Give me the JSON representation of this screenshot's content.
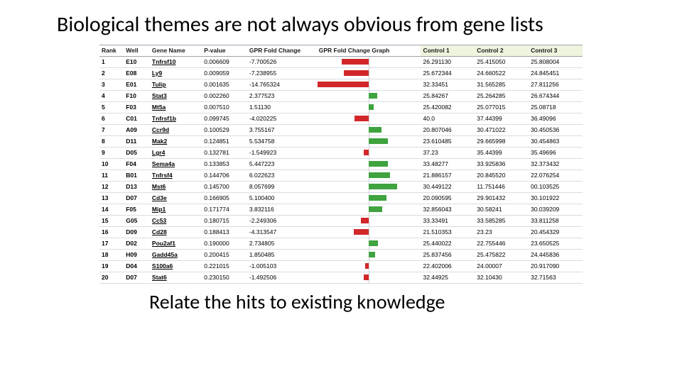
{
  "title": "Biological themes are not always obvious from gene lists",
  "subtitle": "Relate the hits to existing knowledge",
  "table": {
    "fc_scale": 15,
    "colors": {
      "neg_bar": "#d1272a",
      "pos_bar": "#3fa33f",
      "ctrl_header_bg": "#eef4dd"
    },
    "columns": [
      {
        "key": "rank",
        "label": "Rank"
      },
      {
        "key": "well",
        "label": "Well"
      },
      {
        "key": "gene",
        "label": "Gene Name"
      },
      {
        "key": "pval",
        "label": "P-value"
      },
      {
        "key": "fc",
        "label": "GPR Fold Change"
      },
      {
        "key": "graph",
        "label": "GPR Fold Change Graph"
      },
      {
        "key": "c1",
        "label": "Control 1",
        "ctrl": true
      },
      {
        "key": "c2",
        "label": "Control 2",
        "ctrl": true
      },
      {
        "key": "c3",
        "label": "Control 3",
        "ctrl": true
      }
    ],
    "rows": [
      {
        "rank": "1",
        "well": "E10",
        "gene": "Tnfrsf10",
        "pval": "0.006609",
        "fc": "-7.700526",
        "c1": "26.291130",
        "c2": "25.415050",
        "c3": "25.808004"
      },
      {
        "rank": "2",
        "well": "E08",
        "gene": "Ly9",
        "pval": "0.009059",
        "fc": "-7.238955",
        "c1": "25.672344",
        "c2": "24.660522",
        "c3": "24.845451"
      },
      {
        "rank": "3",
        "well": "E01",
        "gene": "Tulip",
        "pval": "0.001635",
        "fc": "-14.765324",
        "c1": "32.33451",
        "c2": "31.565285",
        "c3": "27.811256"
      },
      {
        "rank": "4",
        "well": "F10",
        "gene": "Stat3",
        "pval": "0.002260",
        "fc": "2.377523",
        "c1": "25.84267",
        "c2": "25.264285",
        "c3": "26.674344"
      },
      {
        "rank": "5",
        "well": "F03",
        "gene": "Mt5a",
        "pval": "0.007510",
        "fc": "1.51130",
        "c1": "25.420082",
        "c2": "25.077015",
        "c3": "25.08718"
      },
      {
        "rank": "6",
        "well": "C01",
        "gene": "Tnfrsf1b",
        "pval": "0.099745",
        "fc": "-4.020225",
        "c1": "40.0",
        "c2": "37.44399",
        "c3": "36.49096"
      },
      {
        "rank": "7",
        "well": "A09",
        "gene": "Ccr9d",
        "pval": "0.100529",
        "fc": "3.755167",
        "c1": "20.807046",
        "c2": "30.471022",
        "c3": "30.450536"
      },
      {
        "rank": "8",
        "well": "D11",
        "gene": "Mak2",
        "pval": "0.124851",
        "fc": "5.534758",
        "c1": "23.610485",
        "c2": "29.665998",
        "c3": "30.454863"
      },
      {
        "rank": "9",
        "well": "D05",
        "gene": "Lgr4",
        "pval": "0.132781",
        "fc": "-1.549923",
        "c1": "37.23",
        "c2": "35.44399",
        "c3": "35.49696"
      },
      {
        "rank": "10",
        "well": "F04",
        "gene": "Sema4a",
        "pval": "0.133853",
        "fc": "5.447223",
        "c1": "33.48277",
        "c2": "33.925836",
        "c3": "32.373432"
      },
      {
        "rank": "11",
        "well": "B01",
        "gene": "Tnfrsf4",
        "pval": "0.144706",
        "fc": "6.022623",
        "c1": "21.886157",
        "c2": "20.845520",
        "c3": "22.076254"
      },
      {
        "rank": "12",
        "well": "D13",
        "gene": "Mst6",
        "pval": "0.145700",
        "fc": "8.057699",
        "c1": "30.449122",
        "c2": "11.751446",
        "c3": "00.103525"
      },
      {
        "rank": "13",
        "well": "D07",
        "gene": "Cd3e",
        "pval": "0.166905",
        "fc": "5.100400",
        "c1": "20.090595",
        "c2": "29.901432",
        "c3": "30.101922"
      },
      {
        "rank": "14",
        "well": "F05",
        "gene": "Mip1",
        "pval": "0.171774",
        "fc": "3.832116",
        "c1": "32.856043",
        "c2": "30.58241",
        "c3": "30.039209"
      },
      {
        "rank": "15",
        "well": "G05",
        "gene": "Cc53",
        "pval": "0.180715",
        "fc": "-2.249306",
        "c1": "33.33491",
        "c2": "33.585285",
        "c3": "33.811258"
      },
      {
        "rank": "16",
        "well": "D09",
        "gene": "Cd28",
        "pval": "0.188413",
        "fc": "-4.313547",
        "c1": "21.510353",
        "c2": "23.23",
        "c3": "20.454329"
      },
      {
        "rank": "17",
        "well": "D02",
        "gene": "Pou2af1",
        "pval": "0.190000",
        "fc": "2.734805",
        "c1": "25.440022",
        "c2": "22.755446",
        "c3": "23.650525"
      },
      {
        "rank": "18",
        "well": "H09",
        "gene": "Gadd45a",
        "pval": "0.200415",
        "fc": "1.850485",
        "c1": "25.837456",
        "c2": "25.475822",
        "c3": "24.445836"
      },
      {
        "rank": "19",
        "well": "D04",
        "gene": "S100a6",
        "pval": "0.221015",
        "fc": "-1.005103",
        "c1": "22.402006",
        "c2": "24.00007",
        "c3": "20.917090"
      },
      {
        "rank": "20",
        "well": "D07",
        "gene": "Stat6",
        "pval": "0.230150",
        "fc": "-1.492506",
        "c1": "32.44925",
        "c2": "32.10430",
        "c3": "32.71563"
      }
    ]
  }
}
